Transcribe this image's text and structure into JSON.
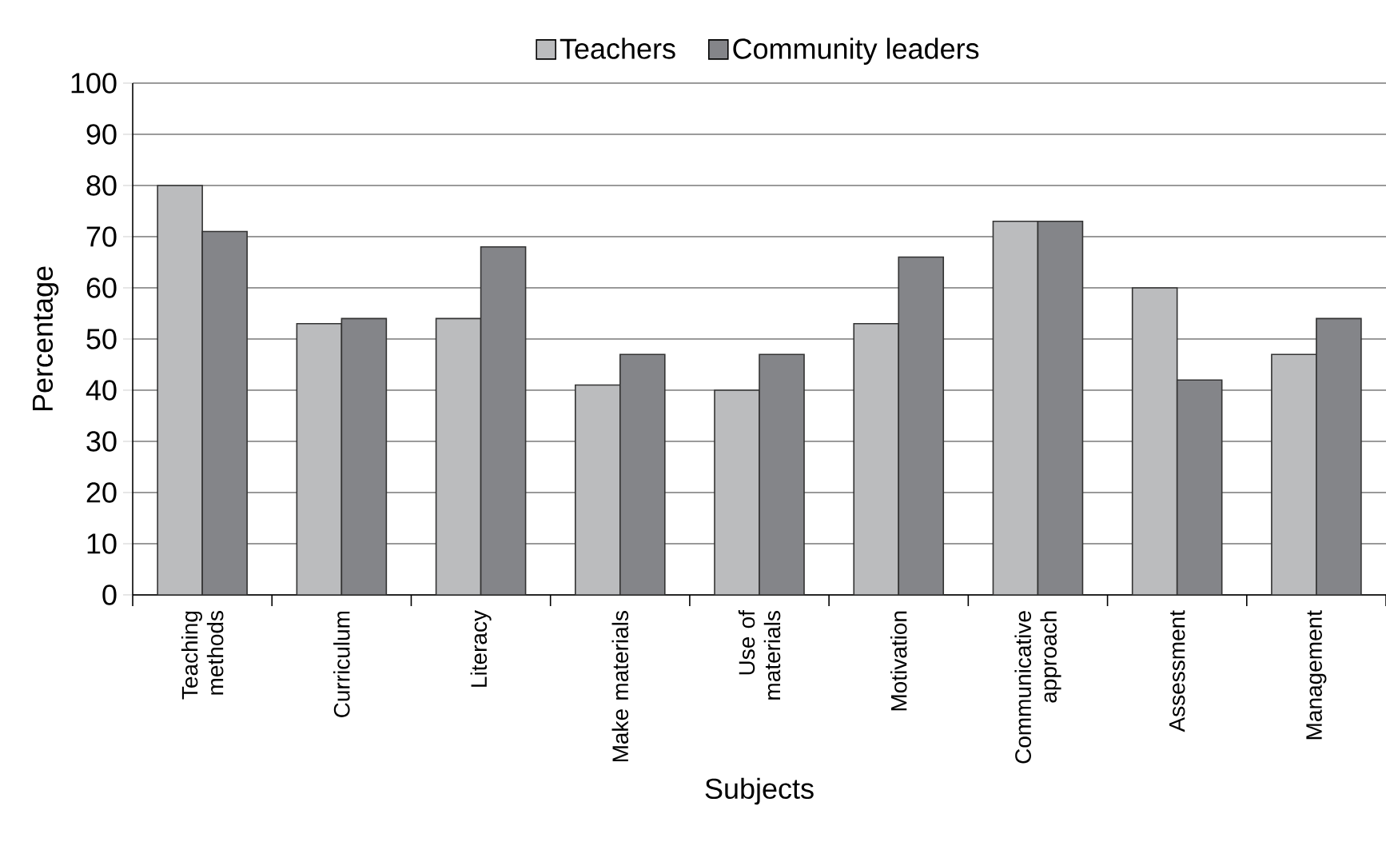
{
  "chart_data": {
    "type": "bar",
    "xlabel": "Subjects",
    "ylabel": "Percentage",
    "categories": [
      "Teaching methods",
      "Curriculum",
      "Literacy",
      "Make materials",
      "Use of materials",
      "Motivation",
      "Communicative approach",
      "Assessment",
      "Management"
    ],
    "series": [
      {
        "name": "Teachers",
        "color": "#bbbcbe",
        "values": [
          80,
          53,
          54,
          41,
          40,
          53,
          73,
          60,
          47
        ]
      },
      {
        "name": "Community leaders",
        "color": "#848589",
        "values": [
          71,
          54,
          68,
          47,
          47,
          66,
          73,
          42,
          54
        ]
      }
    ],
    "ylim": [
      0,
      100
    ],
    "yticks": [
      0,
      10,
      20,
      30,
      40,
      50,
      60,
      70,
      80,
      90,
      100
    ],
    "grid": "y",
    "legend": "top"
  }
}
